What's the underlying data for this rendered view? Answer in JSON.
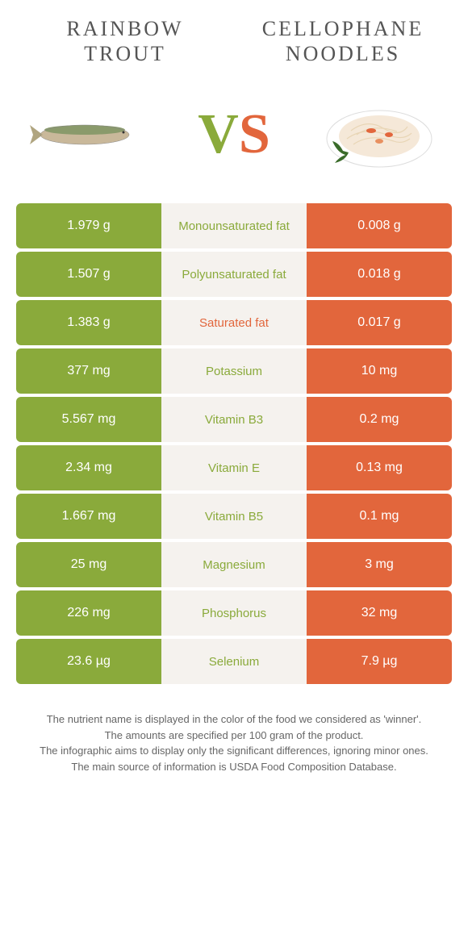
{
  "colors": {
    "green": "#8aaa3b",
    "orange": "#e2663c",
    "mid_bg": "#f5f2ee"
  },
  "food_left": {
    "name": "Rainbow\nTrout"
  },
  "food_right": {
    "name": "Cellophane\nnoodles"
  },
  "vs": {
    "v": "V",
    "s": "S"
  },
  "rows": [
    {
      "left": "1.979 g",
      "label": "Monounsaturated fat",
      "right": "0.008 g",
      "winner": "left"
    },
    {
      "left": "1.507 g",
      "label": "Polyunsaturated fat",
      "right": "0.018 g",
      "winner": "left"
    },
    {
      "left": "1.383 g",
      "label": "Saturated fat",
      "right": "0.017 g",
      "winner": "right"
    },
    {
      "left": "377 mg",
      "label": "Potassium",
      "right": "10 mg",
      "winner": "left"
    },
    {
      "left": "5.567 mg",
      "label": "Vitamin B3",
      "right": "0.2 mg",
      "winner": "left"
    },
    {
      "left": "2.34 mg",
      "label": "Vitamin E",
      "right": "0.13 mg",
      "winner": "left"
    },
    {
      "left": "1.667 mg",
      "label": "Vitamin B5",
      "right": "0.1 mg",
      "winner": "left"
    },
    {
      "left": "25 mg",
      "label": "Magnesium",
      "right": "3 mg",
      "winner": "left"
    },
    {
      "left": "226 mg",
      "label": "Phosphorus",
      "right": "32 mg",
      "winner": "left"
    },
    {
      "left": "23.6 µg",
      "label": "Selenium",
      "right": "7.9 µg",
      "winner": "left"
    }
  ],
  "footer": {
    "line1": "The nutrient name is displayed in the color of the food we considered as 'winner'.",
    "line2": "The amounts are specified per 100 gram of the product.",
    "line3": "The infographic aims to display only the significant differences, ignoring minor ones.",
    "line4": "The main source of information is USDA Food Composition Database."
  }
}
